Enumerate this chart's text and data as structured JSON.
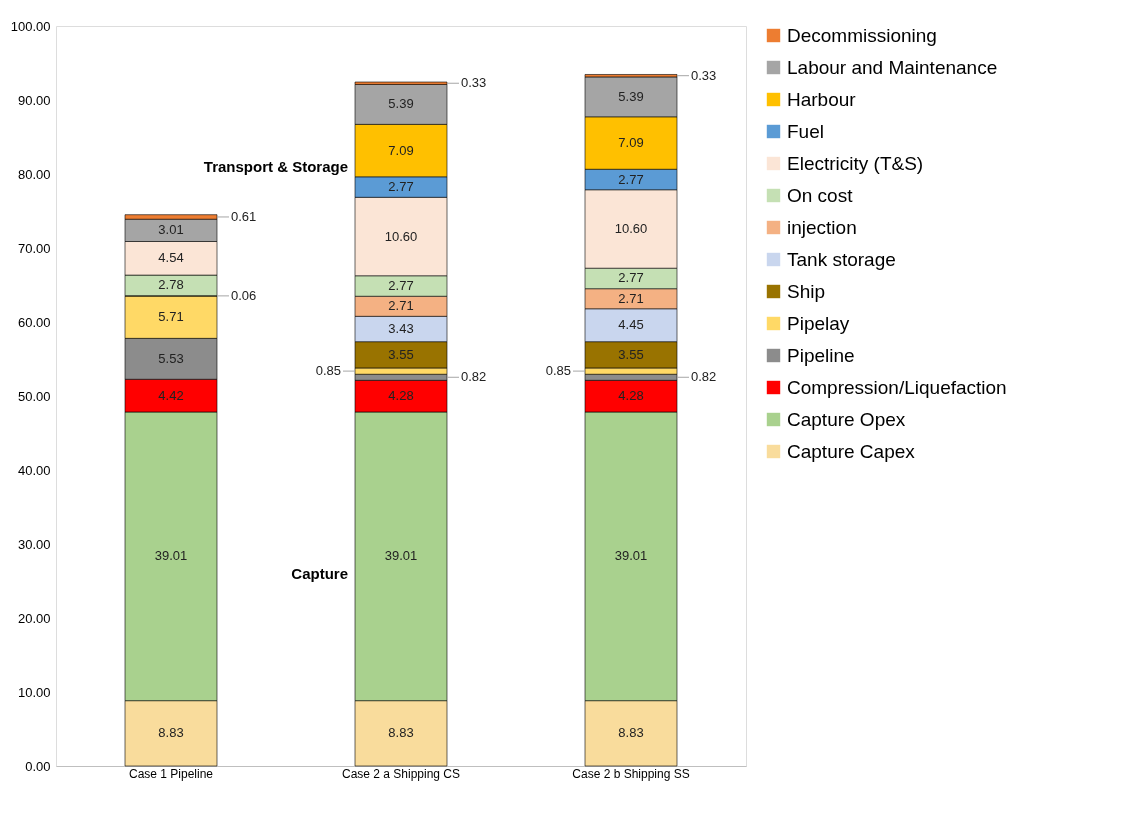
{
  "chart_data": {
    "type": "bar",
    "stacked": true,
    "categories": [
      "Case 1 Pipeline",
      "Case 2 a Shipping CS",
      "Case 2 b Shipping SS"
    ],
    "series": [
      {
        "name": "Capture Capex",
        "color": "#f9dc9c",
        "values": [
          8.83,
          8.83,
          8.83
        ],
        "value_labels": [
          "8.83",
          "8.83",
          "8.83"
        ]
      },
      {
        "name": "Capture Opex",
        "color": "#a9d18e",
        "values": [
          39.01,
          39.01,
          39.01
        ],
        "value_labels": [
          "39.01",
          "39.01",
          "39.01"
        ]
      },
      {
        "name": "Compression/Liquefaction",
        "color": "#ff0000",
        "values": [
          4.42,
          4.28,
          4.28
        ],
        "value_labels": [
          "4.42",
          "4.28",
          "4.28"
        ]
      },
      {
        "name": "Pipeline",
        "color": "#8c8c8c",
        "values": [
          5.53,
          0.82,
          0.82
        ],
        "value_labels": [
          "5.53",
          "0.82",
          "0.82"
        ]
      },
      {
        "name": "Pipelay",
        "color": "#ffd966",
        "values": [
          5.71,
          0.85,
          0.85
        ],
        "value_labels": [
          "5.71",
          "0.85",
          "0.85"
        ]
      },
      {
        "name": "Ship",
        "color": "#997300",
        "values": [
          null,
          3.55,
          3.55
        ],
        "value_labels": [
          null,
          "3.55",
          "3.55"
        ]
      },
      {
        "name": "Tank storage",
        "color": "#c9d6ee",
        "values": [
          null,
          3.43,
          4.45
        ],
        "value_labels": [
          null,
          "3.43",
          "4.45"
        ]
      },
      {
        "name": "injection",
        "color": "#f4b183",
        "values": [
          0.06,
          2.71,
          2.71
        ],
        "value_labels": [
          "0.06",
          "2.71",
          "2.71"
        ]
      },
      {
        "name": "On cost",
        "color": "#c5e0b4",
        "values": [
          2.78,
          2.77,
          2.77
        ],
        "value_labels": [
          "2.78",
          "2.77",
          "2.77"
        ]
      },
      {
        "name": "Electricity (T&S)",
        "color": "#fbe5d6",
        "values": [
          4.54,
          10.6,
          10.6
        ],
        "value_labels": [
          "4.54",
          "10.60",
          "10.60"
        ]
      },
      {
        "name": "Fuel",
        "color": "#5b9bd5",
        "values": [
          null,
          2.77,
          2.77
        ],
        "value_labels": [
          null,
          "2.77",
          "2.77"
        ]
      },
      {
        "name": "Harbour",
        "color": "#ffc000",
        "values": [
          null,
          7.09,
          7.09
        ],
        "value_labels": [
          null,
          "7.09",
          "7.09"
        ]
      },
      {
        "name": "Labour and Maintenance",
        "color": "#a5a5a5",
        "values": [
          3.01,
          5.39,
          5.39
        ],
        "value_labels": [
          "3.01",
          "5.39",
          "5.39"
        ]
      },
      {
        "name": "Decommissioning",
        "color": "#ed7d31",
        "values": [
          0.61,
          0.33,
          0.33
        ],
        "value_labels": [
          "0.61",
          "0.33",
          "0.33"
        ]
      }
    ],
    "ylim": [
      0,
      100
    ],
    "yticks": [
      {
        "value": 0,
        "label": "0.00"
      },
      {
        "value": 10,
        "label": "10.00"
      },
      {
        "value": 20,
        "label": "20.00"
      },
      {
        "value": 30,
        "label": "30.00"
      },
      {
        "value": 40,
        "label": "40.00"
      },
      {
        "value": 50,
        "label": "50.00"
      },
      {
        "value": 60,
        "label": "60.00"
      },
      {
        "value": 70,
        "label": "70.00"
      },
      {
        "value": 80,
        "label": "80.00"
      },
      {
        "value": 90,
        "label": "90.00"
      },
      {
        "value": 100,
        "label": "100.00"
      }
    ],
    "legend": "right",
    "grid": false,
    "annotations": [
      "Transport & Storage",
      "Capture"
    ]
  }
}
